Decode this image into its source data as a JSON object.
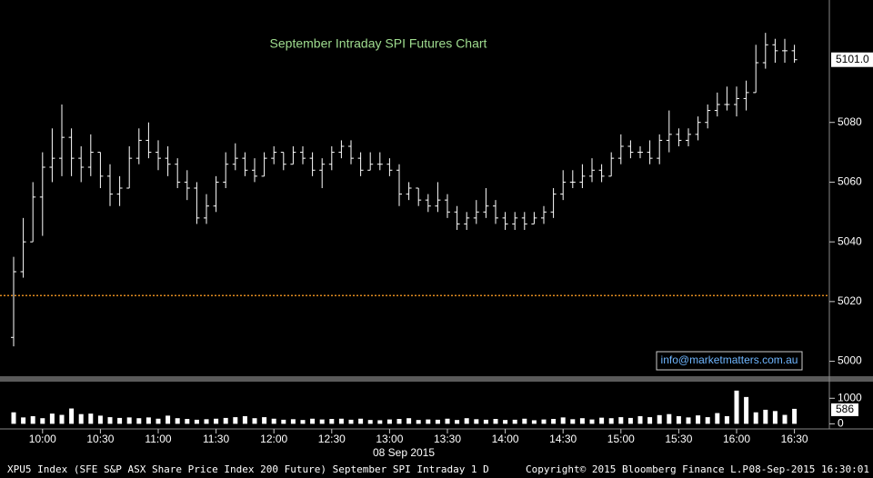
{
  "chart_data": [
    {
      "type": "ohlc",
      "title": "September Intraday SPI Futures Chart",
      "title_color": "#9fdc8f",
      "annotation": "info@marketmatters.com.au",
      "color": "#ffffff",
      "categories": [
        "09:45",
        "09:50",
        "09:55",
        "10:00",
        "10:05",
        "10:10",
        "10:15",
        "10:20",
        "10:25",
        "10:30",
        "10:35",
        "10:40",
        "10:45",
        "10:50",
        "10:55",
        "11:00",
        "11:05",
        "11:10",
        "11:15",
        "11:20",
        "11:25",
        "11:30",
        "11:35",
        "11:40",
        "11:45",
        "11:50",
        "11:55",
        "12:00",
        "12:05",
        "12:10",
        "12:15",
        "12:20",
        "12:25",
        "12:30",
        "12:35",
        "12:40",
        "12:45",
        "12:50",
        "12:55",
        "13:00",
        "13:05",
        "13:10",
        "13:15",
        "13:20",
        "13:25",
        "13:30",
        "13:35",
        "13:40",
        "13:45",
        "13:50",
        "13:55",
        "14:00",
        "14:05",
        "14:10",
        "14:15",
        "14:20",
        "14:25",
        "14:30",
        "14:35",
        "14:40",
        "14:45",
        "14:50",
        "14:55",
        "15:00",
        "15:05",
        "15:10",
        "15:15",
        "15:20",
        "15:25",
        "15:30",
        "15:35",
        "15:40",
        "15:45",
        "15:50",
        "15:55",
        "16:00",
        "16:05",
        "16:10",
        "16:15",
        "16:20",
        "16:25",
        "16:30"
      ],
      "open": [
        5008,
        5030,
        5040,
        5055,
        5065,
        5068,
        5075,
        5068,
        5065,
        5070,
        5062,
        5056,
        5058,
        5068,
        5074,
        5070,
        5068,
        5066,
        5060,
        5058,
        5048,
        5052,
        5060,
        5066,
        5068,
        5064,
        5062,
        5068,
        5070,
        5066,
        5070,
        5068,
        5064,
        5066,
        5070,
        5072,
        5068,
        5064,
        5066,
        5066,
        5064,
        5056,
        5058,
        5054,
        5052,
        5054,
        5050,
        5046,
        5048,
        5050,
        5052,
        5048,
        5046,
        5048,
        5046,
        5048,
        5050,
        5056,
        5060,
        5060,
        5062,
        5064,
        5062,
        5068,
        5072,
        5070,
        5070,
        5068,
        5074,
        5076,
        5074,
        5076,
        5080,
        5084,
        5086,
        5086,
        5088,
        5090,
        5100,
        5106,
        5104,
        5104
      ],
      "high": [
        5035,
        5048,
        5060,
        5070,
        5078,
        5086,
        5078,
        5072,
        5076,
        5070,
        5066,
        5062,
        5072,
        5078,
        5080,
        5074,
        5072,
        5068,
        5064,
        5060,
        5056,
        5062,
        5070,
        5073,
        5070,
        5068,
        5070,
        5072,
        5070,
        5072,
        5072,
        5070,
        5068,
        5072,
        5074,
        5074,
        5070,
        5070,
        5070,
        5068,
        5066,
        5060,
        5058,
        5056,
        5060,
        5056,
        5052,
        5050,
        5054,
        5058,
        5054,
        5050,
        5050,
        5050,
        5050,
        5052,
        5058,
        5064,
        5064,
        5066,
        5068,
        5066,
        5070,
        5076,
        5074,
        5072,
        5074,
        5076,
        5084,
        5078,
        5078,
        5082,
        5086,
        5090,
        5092,
        5092,
        5094,
        5106,
        5110,
        5108,
        5108,
        5106
      ],
      "low": [
        5005,
        5028,
        5040,
        5042,
        5060,
        5062,
        5062,
        5060,
        5062,
        5058,
        5052,
        5052,
        5058,
        5066,
        5068,
        5064,
        5062,
        5058,
        5054,
        5046,
        5046,
        5050,
        5058,
        5064,
        5062,
        5060,
        5062,
        5066,
        5064,
        5066,
        5066,
        5062,
        5058,
        5064,
        5068,
        5066,
        5062,
        5064,
        5064,
        5062,
        5052,
        5054,
        5052,
        5050,
        5050,
        5048,
        5044,
        5044,
        5046,
        5048,
        5046,
        5044,
        5044,
        5044,
        5046,
        5046,
        5048,
        5054,
        5058,
        5058,
        5060,
        5060,
        5062,
        5066,
        5068,
        5068,
        5066,
        5066,
        5070,
        5072,
        5072,
        5074,
        5078,
        5082,
        5084,
        5082,
        5084,
        5090,
        5098,
        5100,
        5100,
        5100
      ],
      "close": [
        5030,
        5040,
        5055,
        5065,
        5068,
        5075,
        5068,
        5065,
        5070,
        5062,
        5056,
        5058,
        5068,
        5074,
        5070,
        5068,
        5066,
        5060,
        5058,
        5048,
        5052,
        5060,
        5066,
        5068,
        5064,
        5062,
        5068,
        5070,
        5066,
        5070,
        5068,
        5064,
        5066,
        5070,
        5072,
        5068,
        5064,
        5066,
        5066,
        5064,
        5056,
        5058,
        5054,
        5052,
        5054,
        5050,
        5046,
        5048,
        5050,
        5052,
        5048,
        5046,
        5048,
        5046,
        5048,
        5050,
        5056,
        5060,
        5060,
        5062,
        5064,
        5062,
        5068,
        5072,
        5070,
        5070,
        5068,
        5074,
        5076,
        5074,
        5076,
        5080,
        5084,
        5086,
        5086,
        5088,
        5090,
        5100,
        5106,
        5104,
        5104,
        5101
      ],
      "last_label": "5101.0",
      "reference_line": 5022,
      "reference_color": "#e08a1e",
      "ylim": [
        4995,
        5121
      ],
      "yticks": [
        5000,
        5020,
        5040,
        5060,
        5080
      ]
    },
    {
      "type": "bar",
      "color": "#ffffff",
      "values": [
        450,
        250,
        300,
        220,
        400,
        350,
        600,
        380,
        400,
        320,
        260,
        230,
        250,
        220,
        250,
        200,
        320,
        220,
        190,
        160,
        180,
        200,
        230,
        260,
        300,
        220,
        260,
        200,
        160,
        180,
        150,
        200,
        170,
        190,
        200,
        160,
        200,
        150,
        140,
        170,
        190,
        220,
        150,
        170,
        160,
        200,
        150,
        220,
        180,
        160,
        190,
        150,
        160,
        200,
        140,
        170,
        190,
        250,
        180,
        220,
        170,
        240,
        220,
        260,
        230,
        300,
        260,
        340,
        380,
        300,
        250,
        330,
        260,
        420,
        300,
        1300,
        1050,
        450,
        550,
        500,
        350,
        586
      ],
      "ylim": [
        -200,
        1650
      ],
      "yticks": [
        0,
        1000
      ],
      "xticks": [
        "10:00",
        "10:30",
        "11:00",
        "11:30",
        "12:00",
        "12:30",
        "13:00",
        "13:30",
        "14:00",
        "14:30",
        "15:00",
        "15:30",
        "16:00",
        "16:30"
      ],
      "x_label": "08 Sep 2015"
    }
  ],
  "footer": {
    "left": "XPU5 Index (SFE S&P ASX Share Price Index 200 Future) September SPI Intraday 1 D",
    "copyright": "Copyright© 2015 Bloomberg Finance L.P.",
    "timestamp": "08-Sep-2015 16:30:01"
  }
}
